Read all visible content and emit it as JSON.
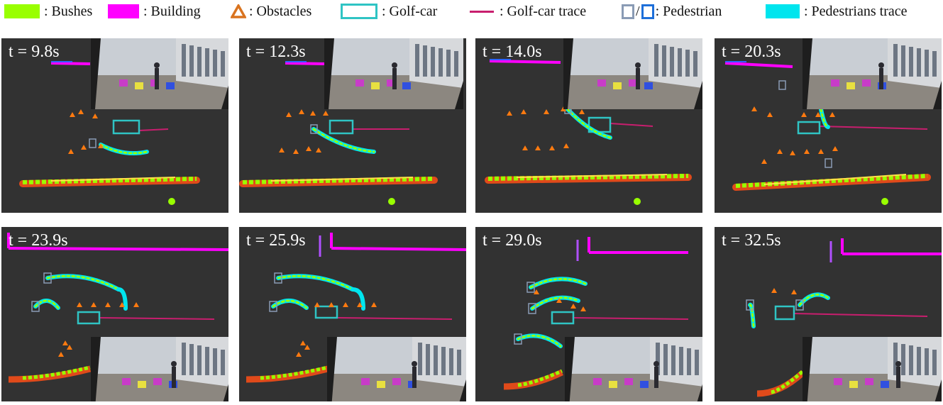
{
  "legend": {
    "bushes": ": Bushes",
    "building": ": Building",
    "obstacles": ": Obstacles",
    "golfcar": ": Golf-car",
    "golfcar_trace": ": Golf-car trace",
    "pedestrian_sep": "/",
    "pedestrian": ": Pedestrian",
    "pedestrians_trace": ": Pedestrians trace"
  },
  "colors": {
    "bushes": "#99ff00",
    "building": "#ff00ff",
    "obstacles": "#d9731f",
    "golfcar": "#2fc4c4",
    "golfcar_trace": "#c81e6e",
    "pedestrian": "#8a9bb5",
    "pedestrian_alt": "#1e6fd9",
    "pedestrians_trace": "#00e5ee",
    "panel_bg": "#323232"
  },
  "panels": [
    {
      "time": "t = 9.8s"
    },
    {
      "time": "t = 12.3s"
    },
    {
      "time": "t = 14.0s"
    },
    {
      "time": "t = 20.3s"
    },
    {
      "time": "t = 23.9s"
    },
    {
      "time": "t = 25.9s"
    },
    {
      "time": "t = 29.0s"
    },
    {
      "time": "t = 32.5s"
    }
  ]
}
